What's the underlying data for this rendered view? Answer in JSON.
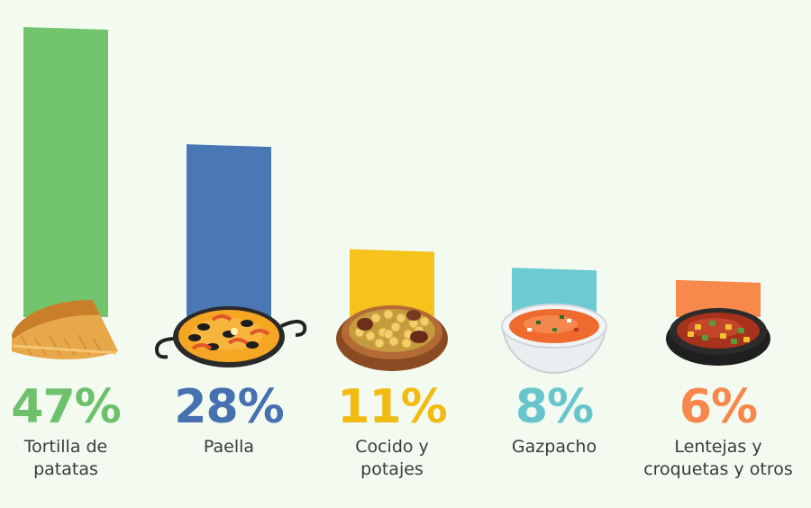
{
  "chart_data": {
    "type": "bar",
    "categories": [
      "Tortilla de\npatatas",
      "Paella",
      "Cocido y\npotajes",
      "Gazpacho",
      "Lentejas y\ncroquetas y otros"
    ],
    "values": [
      47,
      28,
      11,
      8,
      6
    ],
    "value_labels": [
      "47%",
      "28%",
      "11%",
      "8%",
      "6%"
    ],
    "colors": [
      "#72c46d",
      "#4a78b5",
      "#f6c21c",
      "#6ccbd2",
      "#f8894d"
    ],
    "label_colors": [
      "#6cc16a",
      "#4670b0",
      "#f2bb12",
      "#68c5cd",
      "#f7874c"
    ],
    "icons": [
      "tortilla-icon",
      "paella-icon",
      "cocido-icon",
      "gazpacho-icon",
      "lentejas-icon"
    ],
    "ylim": [
      0,
      47
    ],
    "grid": false,
    "legend": "none"
  }
}
